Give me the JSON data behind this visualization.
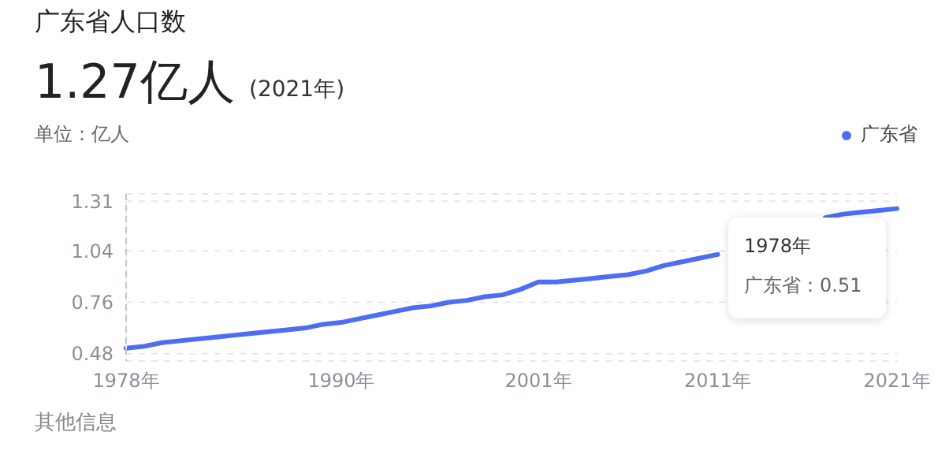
{
  "chart_data": {
    "type": "line",
    "title": "广东省人口数",
    "subtitle": "1.27亿人",
    "ylabel": "单位：亿人",
    "annotations": [
      "(2021年)",
      "1978年",
      "广东省：0.51",
      "其他信息"
    ],
    "categories": [
      "1978年",
      null,
      null,
      null,
      null,
      null,
      null,
      null,
      null,
      null,
      null,
      null,
      "1990年",
      null,
      null,
      null,
      null,
      null,
      null,
      null,
      null,
      null,
      null,
      "2001年",
      null,
      null,
      null,
      null,
      null,
      null,
      null,
      null,
      null,
      "2011年",
      null,
      null,
      null,
      null,
      null,
      null,
      null,
      null,
      null,
      "2021年"
    ],
    "series": [
      {
        "name": "广东省",
        "color": "#4c6ef5",
        "values": [
          0.51,
          0.52,
          0.54,
          0.55,
          0.56,
          0.57,
          0.58,
          0.59,
          0.6,
          0.61,
          0.62,
          0.64,
          0.65,
          0.67,
          0.69,
          0.71,
          0.73,
          0.74,
          0.76,
          0.77,
          0.79,
          0.8,
          0.83,
          0.87,
          0.87,
          0.88,
          0.89,
          0.9,
          0.91,
          0.93,
          0.96,
          0.98,
          1.0,
          1.02,
          null,
          null,
          null,
          null,
          null,
          1.22,
          1.24,
          1.25,
          1.26,
          1.27
        ]
      }
    ],
    "ylim": [
      0.44,
      1.35
    ],
    "yticks": [
      0.48,
      0.76,
      1.04,
      1.31
    ],
    "grid": "y",
    "legend": "top right",
    "line_style": "solid",
    "ref_lines": [
      {
        "axis": "x",
        "value": "1978年",
        "color": "#c0c4cc",
        "line_style": "dashed"
      }
    ]
  }
}
